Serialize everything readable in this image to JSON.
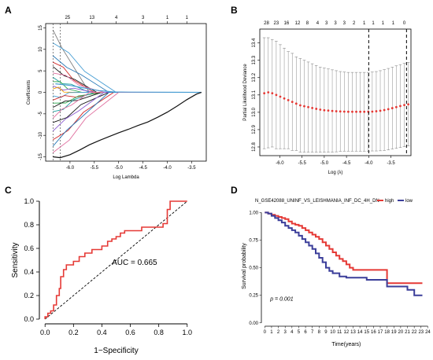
{
  "chart_data": [
    {
      "panel": "A",
      "type": "line",
      "xlabel": "Log Lambda",
      "ylabel": "Coefficients",
      "xlim": [
        -6.5,
        -3.2
      ],
      "ylim": [
        -16,
        16
      ],
      "xticks": [
        "-6.0",
        "-5.5",
        "-5.0",
        "-4.5",
        "-4.0",
        "-3.5"
      ],
      "xtick_values": [
        -6.0,
        -5.5,
        -5.0,
        -4.5,
        -4.0,
        -3.5
      ],
      "yticks": [
        "-15",
        "-10",
        "-5",
        "0",
        "5",
        "10",
        "15"
      ],
      "ytick_values": [
        -15,
        -10,
        -5,
        0,
        5,
        10,
        15
      ],
      "top_axis_labels": [
        "25",
        "13",
        "4",
        "3",
        "1",
        "1"
      ],
      "top_axis_positions": [
        -6.05,
        -5.55,
        -5.05,
        -4.5,
        -4.0,
        -3.6
      ],
      "x_end": -3.3,
      "series": [
        {
          "color": "#7a7a7a",
          "start": 14.5,
          "zero_at": -5.6
        },
        {
          "color": "#4a9fd4",
          "start": 11.5,
          "zero_at": -5.05
        },
        {
          "color": "#2a7ab8",
          "start": 8.5,
          "zero_at": -5.2
        },
        {
          "color": "#d22a2a",
          "start": 7.0,
          "zero_at": -5.5
        },
        {
          "color": "#111111",
          "start": 6.0,
          "zero_at": -5.45
        },
        {
          "color": "#e06f9f",
          "start": 4.5,
          "zero_at": -5.3
        },
        {
          "color": "#1fa0a0",
          "start": 3.5,
          "zero_at": -5.6
        },
        {
          "color": "#2fa84f",
          "start": 2.5,
          "zero_at": -5.75
        },
        {
          "color": "#8a5bd0",
          "start": 1.5,
          "zero_at": -5.5
        },
        {
          "color": "#f0a000",
          "start": 0.8,
          "zero_at": -5.9
        },
        {
          "color": "#4a9fd4",
          "start": -0.8,
          "zero_at": -5.7
        },
        {
          "color": "#d22a2a",
          "start": -1.8,
          "zero_at": -5.4
        },
        {
          "color": "#2fa84f",
          "start": -2.5,
          "zero_at": -5.3
        },
        {
          "color": "#111111",
          "start": -3.5,
          "zero_at": -5.35
        },
        {
          "color": "#1fa0a0",
          "start": -4.5,
          "zero_at": -5.5
        },
        {
          "color": "#e06f9f",
          "start": -6.0,
          "zero_at": -5.6
        },
        {
          "color": "#111111",
          "start": -7.0,
          "zero_at": -5.2
        },
        {
          "color": "#8a5bd0",
          "start": -9.0,
          "zero_at": -5.3
        },
        {
          "color": "#d22a2a",
          "start": -11.0,
          "zero_at": -5.1
        },
        {
          "color": "#2a7ab8",
          "start": -12.5,
          "zero_at": -5.2
        },
        {
          "color": "#e06f9f",
          "start": -14.0,
          "zero_at": -5.0
        }
      ],
      "persistent_series": {
        "color": "#111111",
        "points": [
          [
            -6.35,
            -15.0
          ],
          [
            -6.2,
            -15.2
          ],
          [
            -6.0,
            -14.5
          ],
          [
            -5.8,
            -13.4
          ],
          [
            -5.6,
            -12.2
          ],
          [
            -5.4,
            -11.2
          ],
          [
            -5.2,
            -10.3
          ],
          [
            -5.0,
            -9.4
          ],
          [
            -4.8,
            -8.6
          ],
          [
            -4.6,
            -7.7
          ],
          [
            -4.4,
            -6.9
          ],
          [
            -4.2,
            -5.8
          ],
          [
            -4.0,
            -4.6
          ],
          [
            -3.8,
            -3.2
          ],
          [
            -3.6,
            -1.7
          ],
          [
            -3.4,
            -0.4
          ],
          [
            -3.3,
            0
          ]
        ]
      },
      "persistent_series_2": {
        "color": "#4a9fd4",
        "points": [
          [
            -6.3,
            2.0
          ],
          [
            -6.0,
            1.6
          ],
          [
            -5.7,
            1.0
          ],
          [
            -5.4,
            0.4
          ],
          [
            -5.1,
            0.1
          ],
          [
            -4.8,
            0.05
          ],
          [
            -3.3,
            0
          ]
        ]
      },
      "vlines": [
        -6.35,
        -6.2
      ]
    },
    {
      "panel": "B",
      "type": "scatter",
      "xlabel": "Log (λ)",
      "ylabel": "Partial Likelihood Deviance",
      "xlim": [
        -6.45,
        -3.05
      ],
      "ylim": [
        12.75,
        13.48
      ],
      "xticks": [
        "-6.0",
        "-5.5",
        "-5.0",
        "-4.5",
        "-4.0",
        "-3.5"
      ],
      "xtick_values": [
        -6.0,
        -5.5,
        -5.0,
        -4.5,
        -4.0,
        -3.5
      ],
      "yticks": [
        "12.8",
        "12.9",
        "13.0",
        "13.1",
        "13.2",
        "13.3",
        "13.4"
      ],
      "ytick_values": [
        12.8,
        12.9,
        13.0,
        13.1,
        13.2,
        13.3,
        13.4
      ],
      "top_axis_labels": [
        "28",
        "23",
        "16",
        "12",
        "8",
        "4",
        "3",
        "3",
        "3",
        "2",
        "1",
        "1",
        "1",
        "1",
        "0"
      ],
      "top_axis_positions": [
        -6.3,
        -6.08,
        -5.85,
        -5.6,
        -5.38,
        -5.15,
        -4.95,
        -4.75,
        -4.55,
        -4.33,
        -4.1,
        -3.9,
        -3.68,
        -3.45,
        -3.2
      ],
      "vlines": [
        -4.0,
        -3.15
      ],
      "points_x": [
        -6.35,
        -6.26,
        -6.17,
        -6.08,
        -5.99,
        -5.9,
        -5.81,
        -5.72,
        -5.63,
        -5.54,
        -5.45,
        -5.36,
        -5.27,
        -5.18,
        -5.09,
        -5.0,
        -4.91,
        -4.82,
        -4.73,
        -4.64,
        -4.55,
        -4.46,
        -4.37,
        -4.28,
        -4.19,
        -4.1,
        -4.01,
        -3.92,
        -3.83,
        -3.74,
        -3.65,
        -3.56,
        -3.47,
        -3.38,
        -3.29,
        -3.2,
        -3.11
      ],
      "points_y": [
        13.11,
        13.115,
        13.11,
        13.1,
        13.09,
        13.08,
        13.07,
        13.06,
        13.05,
        13.04,
        13.035,
        13.03,
        13.025,
        13.02,
        13.015,
        13.012,
        13.01,
        13.008,
        13.006,
        13.005,
        13.004,
        13.003,
        13.003,
        13.003,
        13.003,
        13.003,
        13.003,
        13.004,
        13.006,
        13.009,
        13.013,
        13.018,
        13.024,
        13.03,
        13.036,
        13.042,
        13.046
      ],
      "err_upper": [
        13.43,
        13.43,
        13.42,
        13.41,
        13.39,
        13.37,
        13.35,
        13.34,
        13.32,
        13.31,
        13.3,
        13.29,
        13.28,
        13.27,
        13.26,
        13.255,
        13.25,
        13.245,
        13.24,
        13.235,
        13.232,
        13.23,
        13.23,
        13.23,
        13.23,
        13.23,
        13.23,
        13.232,
        13.235,
        13.24,
        13.246,
        13.253,
        13.26,
        13.268,
        13.275,
        13.282,
        13.288
      ],
      "err_lower": [
        12.79,
        12.795,
        12.8,
        12.79,
        12.79,
        12.79,
        12.79,
        12.78,
        12.78,
        12.77,
        12.77,
        12.77,
        12.77,
        12.77,
        12.77,
        12.77,
        12.77,
        12.77,
        12.772,
        12.775,
        12.776,
        12.776,
        12.776,
        12.776,
        12.776,
        12.776,
        12.776,
        12.777,
        12.777,
        12.778,
        12.78,
        12.783,
        12.788,
        12.792,
        12.797,
        12.802,
        12.806
      ]
    },
    {
      "panel": "C",
      "type": "line",
      "xlabel": "1−Specificity",
      "ylabel": "Sensitivity",
      "xlim": [
        -0.04,
        1.04
      ],
      "ylim": [
        -0.04,
        1.04
      ],
      "xticks": [
        "0.0",
        "0.2",
        "0.4",
        "0.6",
        "0.8",
        "1.0"
      ],
      "xtick_values": [
        0.0,
        0.2,
        0.4,
        0.6,
        0.8,
        1.0
      ],
      "yticks": [
        "0.0",
        "0.2",
        "0.4",
        "0.6",
        "0.8",
        "1.0"
      ],
      "ytick_values": [
        0.0,
        0.2,
        0.4,
        0.6,
        0.8,
        1.0
      ],
      "annotation": "AUC = 0.665",
      "annotation_pos": [
        0.47,
        0.46
      ],
      "roc_points": [
        [
          0,
          0
        ],
        [
          0,
          0.02
        ],
        [
          0.02,
          0.02
        ],
        [
          0.02,
          0.05
        ],
        [
          0.04,
          0.05
        ],
        [
          0.04,
          0.07
        ],
        [
          0.06,
          0.07
        ],
        [
          0.06,
          0.12
        ],
        [
          0.08,
          0.12
        ],
        [
          0.08,
          0.2
        ],
        [
          0.1,
          0.2
        ],
        [
          0.1,
          0.26
        ],
        [
          0.11,
          0.26
        ],
        [
          0.11,
          0.36
        ],
        [
          0.13,
          0.36
        ],
        [
          0.13,
          0.42
        ],
        [
          0.15,
          0.42
        ],
        [
          0.15,
          0.46
        ],
        [
          0.2,
          0.46
        ],
        [
          0.2,
          0.49
        ],
        [
          0.24,
          0.49
        ],
        [
          0.24,
          0.53
        ],
        [
          0.28,
          0.53
        ],
        [
          0.28,
          0.56
        ],
        [
          0.33,
          0.56
        ],
        [
          0.33,
          0.59
        ],
        [
          0.4,
          0.59
        ],
        [
          0.4,
          0.62
        ],
        [
          0.44,
          0.62
        ],
        [
          0.44,
          0.66
        ],
        [
          0.47,
          0.66
        ],
        [
          0.47,
          0.68
        ],
        [
          0.5,
          0.68
        ],
        [
          0.5,
          0.7
        ],
        [
          0.53,
          0.7
        ],
        [
          0.53,
          0.73
        ],
        [
          0.56,
          0.73
        ],
        [
          0.56,
          0.75
        ],
        [
          0.68,
          0.75
        ],
        [
          0.68,
          0.78
        ],
        [
          0.83,
          0.78
        ],
        [
          0.83,
          0.81
        ],
        [
          0.86,
          0.81
        ],
        [
          0.86,
          0.93
        ],
        [
          0.88,
          0.93
        ],
        [
          0.88,
          1.0
        ],
        [
          1.0,
          1.0
        ]
      ],
      "diagonal": [
        [
          0,
          0
        ],
        [
          1,
          1
        ]
      ]
    },
    {
      "panel": "D",
      "type": "line",
      "title": "N_GSE42088_UNINF_VS_LEISHMANIA_INF_DC_4H_DN",
      "xlabel": "Time(years)",
      "ylabel": "Survival probability",
      "xlim": [
        -0.5,
        24.3
      ],
      "ylim": [
        -0.03,
        1.06
      ],
      "xticks": [
        "0",
        "1",
        "2",
        "3",
        "4",
        "5",
        "6",
        "7",
        "8",
        "9",
        "10",
        "11",
        "12",
        "13",
        "14",
        "15",
        "16",
        "17",
        "18",
        "19",
        "20",
        "21",
        "22",
        "23",
        "24"
      ],
      "xtick_values": [
        0,
        1,
        2,
        3,
        4,
        5,
        6,
        7,
        8,
        9,
        10,
        11,
        12,
        13,
        14,
        15,
        16,
        17,
        18,
        19,
        20,
        21,
        22,
        23,
        24
      ],
      "yticks": [
        "0.00",
        "0.25",
        "0.50",
        "0.75",
        "1.00"
      ],
      "ytick_values": [
        0,
        0.25,
        0.5,
        0.75,
        1.0
      ],
      "annotation": "p = 0.001",
      "legend": [
        "high",
        "low"
      ],
      "legend_position": "top",
      "series": [
        {
          "name": "high",
          "color": "#e53935",
          "steps": [
            [
              0,
              1.0
            ],
            [
              0.5,
              0.99
            ],
            [
              1,
              0.98
            ],
            [
              1.5,
              0.97
            ],
            [
              2,
              0.96
            ],
            [
              2.5,
              0.95
            ],
            [
              3,
              0.94
            ],
            [
              3.5,
              0.92
            ],
            [
              4,
              0.9
            ],
            [
              4.5,
              0.89
            ],
            [
              5,
              0.88
            ],
            [
              5.5,
              0.86
            ],
            [
              6,
              0.84
            ],
            [
              6.5,
              0.82
            ],
            [
              7,
              0.8
            ],
            [
              7.5,
              0.78
            ],
            [
              8,
              0.76
            ],
            [
              8.5,
              0.73
            ],
            [
              9,
              0.7
            ],
            [
              9.5,
              0.67
            ],
            [
              10,
              0.64
            ],
            [
              10.5,
              0.61
            ],
            [
              11,
              0.58
            ],
            [
              11.5,
              0.56
            ],
            [
              12,
              0.53
            ],
            [
              12.5,
              0.5
            ],
            [
              13,
              0.48
            ],
            [
              17.5,
              0.48
            ],
            [
              18,
              0.36
            ],
            [
              23.2,
              0.36
            ]
          ]
        },
        {
          "name": "low",
          "color": "#3b3e9a",
          "steps": [
            [
              0,
              1.0
            ],
            [
              0.5,
              0.99
            ],
            [
              1,
              0.97
            ],
            [
              1.5,
              0.95
            ],
            [
              2,
              0.93
            ],
            [
              2.5,
              0.91
            ],
            [
              3,
              0.88
            ],
            [
              3.5,
              0.86
            ],
            [
              4,
              0.84
            ],
            [
              4.5,
              0.82
            ],
            [
              5,
              0.79
            ],
            [
              5.5,
              0.76
            ],
            [
              6,
              0.73
            ],
            [
              6.5,
              0.7
            ],
            [
              7,
              0.67
            ],
            [
              7.5,
              0.63
            ],
            [
              8,
              0.59
            ],
            [
              8.5,
              0.55
            ],
            [
              9,
              0.5
            ],
            [
              9.5,
              0.47
            ],
            [
              10,
              0.45
            ],
            [
              11,
              0.42
            ],
            [
              12,
              0.41
            ],
            [
              15,
              0.39
            ],
            [
              18,
              0.33
            ],
            [
              21,
              0.3
            ],
            [
              22,
              0.25
            ],
            [
              23.2,
              0.25
            ]
          ]
        }
      ]
    }
  ],
  "panel_labels": [
    "A",
    "B",
    "C",
    "D"
  ],
  "colors": {
    "roc": "#e53935",
    "ci": "#888888",
    "points": "#e53935",
    "high": "#e53935",
    "low": "#3b3e9a"
  }
}
